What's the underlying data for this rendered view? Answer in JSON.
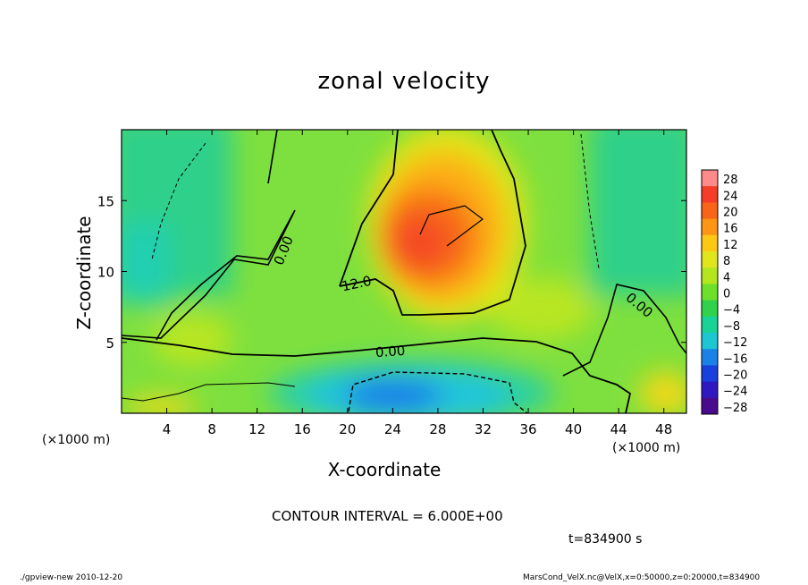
{
  "chart_data": {
    "type": "heatmap",
    "title": "zonal velocity",
    "xlabel": "X-coordinate",
    "ylabel": "Z-coordinate",
    "x_unit_label": "(×1000 m)",
    "x_ticks": [
      4,
      8,
      12,
      16,
      20,
      24,
      28,
      32,
      36,
      40,
      44,
      48
    ],
    "y_ticks": [
      5,
      10,
      15
    ],
    "xlim": [
      0,
      50
    ],
    "ylim": [
      0,
      20
    ],
    "colorbar": {
      "levels": [
        28,
        24,
        20,
        16,
        12,
        8,
        4,
        0,
        -4,
        -8,
        -12,
        -16,
        -20,
        -24,
        -28
      ],
      "labels": [
        "28",
        "24",
        "20",
        "16",
        "12",
        "8",
        "4",
        "0",
        "−4",
        "−8",
        "−12",
        "−16",
        "−20",
        "−24",
        "−28"
      ],
      "colors": [
        "#ff8a8a",
        "#f43c28",
        "#f86418",
        "#fc9614",
        "#fcc814",
        "#e0e61c",
        "#b4e61e",
        "#6ee02a",
        "#30d24c",
        "#18d296",
        "#1cc6d2",
        "#1a82e6",
        "#1840dc",
        "#3018c0",
        "#4a0a8c"
      ]
    },
    "contour_labels": [
      "0.00",
      "12.0",
      "0.00",
      "0.00"
    ],
    "contour_interval_text": "CONTOUR INTERVAL = 6.000E+00",
    "features": [
      {
        "name": "jet maximum",
        "x": 28,
        "z": 13,
        "value": 22
      },
      {
        "name": "low-level minimum",
        "x": 26,
        "z": 1.5,
        "value": -16
      }
    ]
  },
  "time_label": "t=834900 s",
  "footer": {
    "left": "./gpview-new   2010-12-20",
    "right": "MarsCond_VelX.nc@VelX,x=0:50000,z=0:20000,t=834900"
  }
}
